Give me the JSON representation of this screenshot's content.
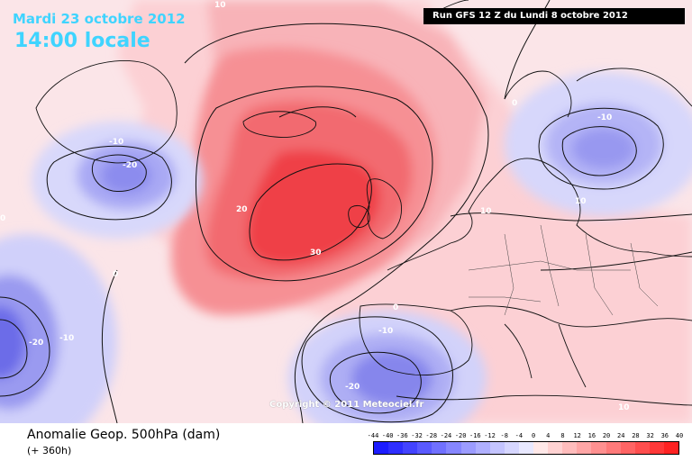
{
  "header": {
    "date": "Mardi 23 octobre 2012",
    "time": "14:00 locale",
    "run": "Run GFS 12 Z du Lundi 8 octobre 2012"
  },
  "copyright": "Copyright © 2011 Meteociel.fr",
  "footer": {
    "field_title": "Anomalie Geop. 500hPa (dam)",
    "lead_time": "(+ 360h)"
  },
  "legend": {
    "ticks": [
      "-44",
      "-40",
      "-36",
      "-32",
      "-28",
      "-24",
      "-20",
      "-16",
      "-12",
      "-8",
      "-4",
      "0",
      "4",
      "8",
      "12",
      "16",
      "20",
      "24",
      "28",
      "32",
      "36",
      "40"
    ],
    "colors": [
      "#1c1cff",
      "#2e2eff",
      "#4343ff",
      "#5a5aff",
      "#7070ff",
      "#8686ff",
      "#9c9cff",
      "#b0b0ff",
      "#c4c4ff",
      "#d6d6ff",
      "#e8e8ff",
      "#ffe8e8",
      "#ffd2d2",
      "#ffbcbc",
      "#ffa6a6",
      "#ff9090",
      "#ff7a7a",
      "#ff6464",
      "#ff4e4e",
      "#ff3838",
      "#ff2222"
    ]
  },
  "contour_labels": [
    {
      "text": "10",
      "kind": "pos"
    },
    {
      "text": "-10",
      "kind": "neg"
    },
    {
      "text": "-20",
      "kind": "neg"
    },
    {
      "text": "20",
      "kind": "pos"
    },
    {
      "text": "30",
      "kind": "pos"
    },
    {
      "text": "0",
      "kind": "zero"
    },
    {
      "text": "-10",
      "kind": "neg"
    },
    {
      "text": "-20",
      "kind": "neg"
    },
    {
      "text": "0",
      "kind": "zero"
    },
    {
      "text": "-10",
      "kind": "neg"
    },
    {
      "text": "-20",
      "kind": "neg"
    },
    {
      "text": "0",
      "kind": "zero"
    },
    {
      "text": "10",
      "kind": "pos"
    },
    {
      "text": "0",
      "kind": "zero"
    },
    {
      "text": "-10",
      "kind": "neg"
    },
    {
      "text": "10",
      "kind": "pos"
    },
    {
      "text": "10",
      "kind": "pos"
    }
  ]
}
